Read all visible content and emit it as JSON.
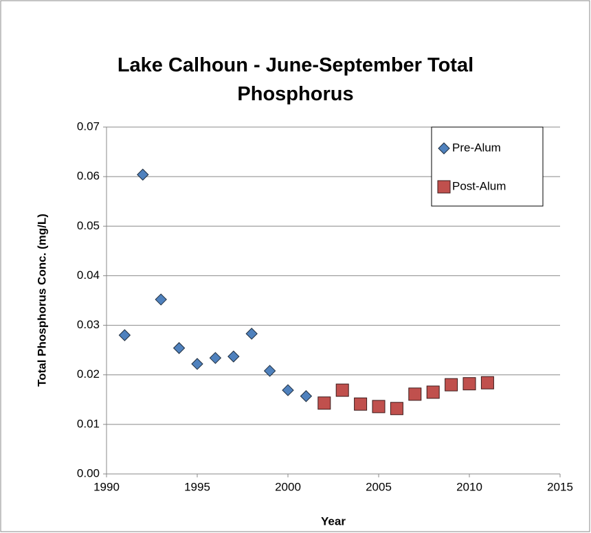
{
  "chart_data": {
    "type": "scatter",
    "title": "Lake Calhoun - June-September Total Phosphorus",
    "x_label": "Year",
    "y_label": "Total Phosphorus Conc. (mg/L)",
    "xlim": [
      1990,
      2015
    ],
    "xticks": [
      1990,
      1995,
      2000,
      2005,
      2010,
      2015
    ],
    "ylim": [
      0,
      0.07
    ],
    "yticks": [
      {
        "value": 0,
        "label": "0.00"
      },
      0.01,
      0.02,
      0.03,
      0.04,
      0.05,
      0.06,
      0.07
    ],
    "grid": true,
    "legend": "upper right",
    "series": [
      {
        "name": "Pre-Alum",
        "color": "#4f81bd",
        "marker": "diamond",
        "x": [
          1991,
          1992,
          1993,
          1994,
          1995,
          1996,
          1997,
          1998,
          1999,
          2000,
          2001
        ],
        "values": [
          0.028,
          0.0604,
          0.0352,
          0.0254,
          0.0222,
          0.0234,
          0.0237,
          0.0283,
          0.0208,
          0.0169,
          0.0157
        ]
      },
      {
        "name": "Post-Alum",
        "color": "#c0504d",
        "marker": "square",
        "x": [
          2002,
          2003,
          2004,
          2005,
          2006,
          2007,
          2008,
          2009,
          2010,
          2011
        ],
        "values": [
          0.0143,
          0.0169,
          0.0141,
          0.0136,
          0.0132,
          0.0161,
          0.0165,
          0.018,
          0.0182,
          0.0184
        ]
      }
    ]
  }
}
